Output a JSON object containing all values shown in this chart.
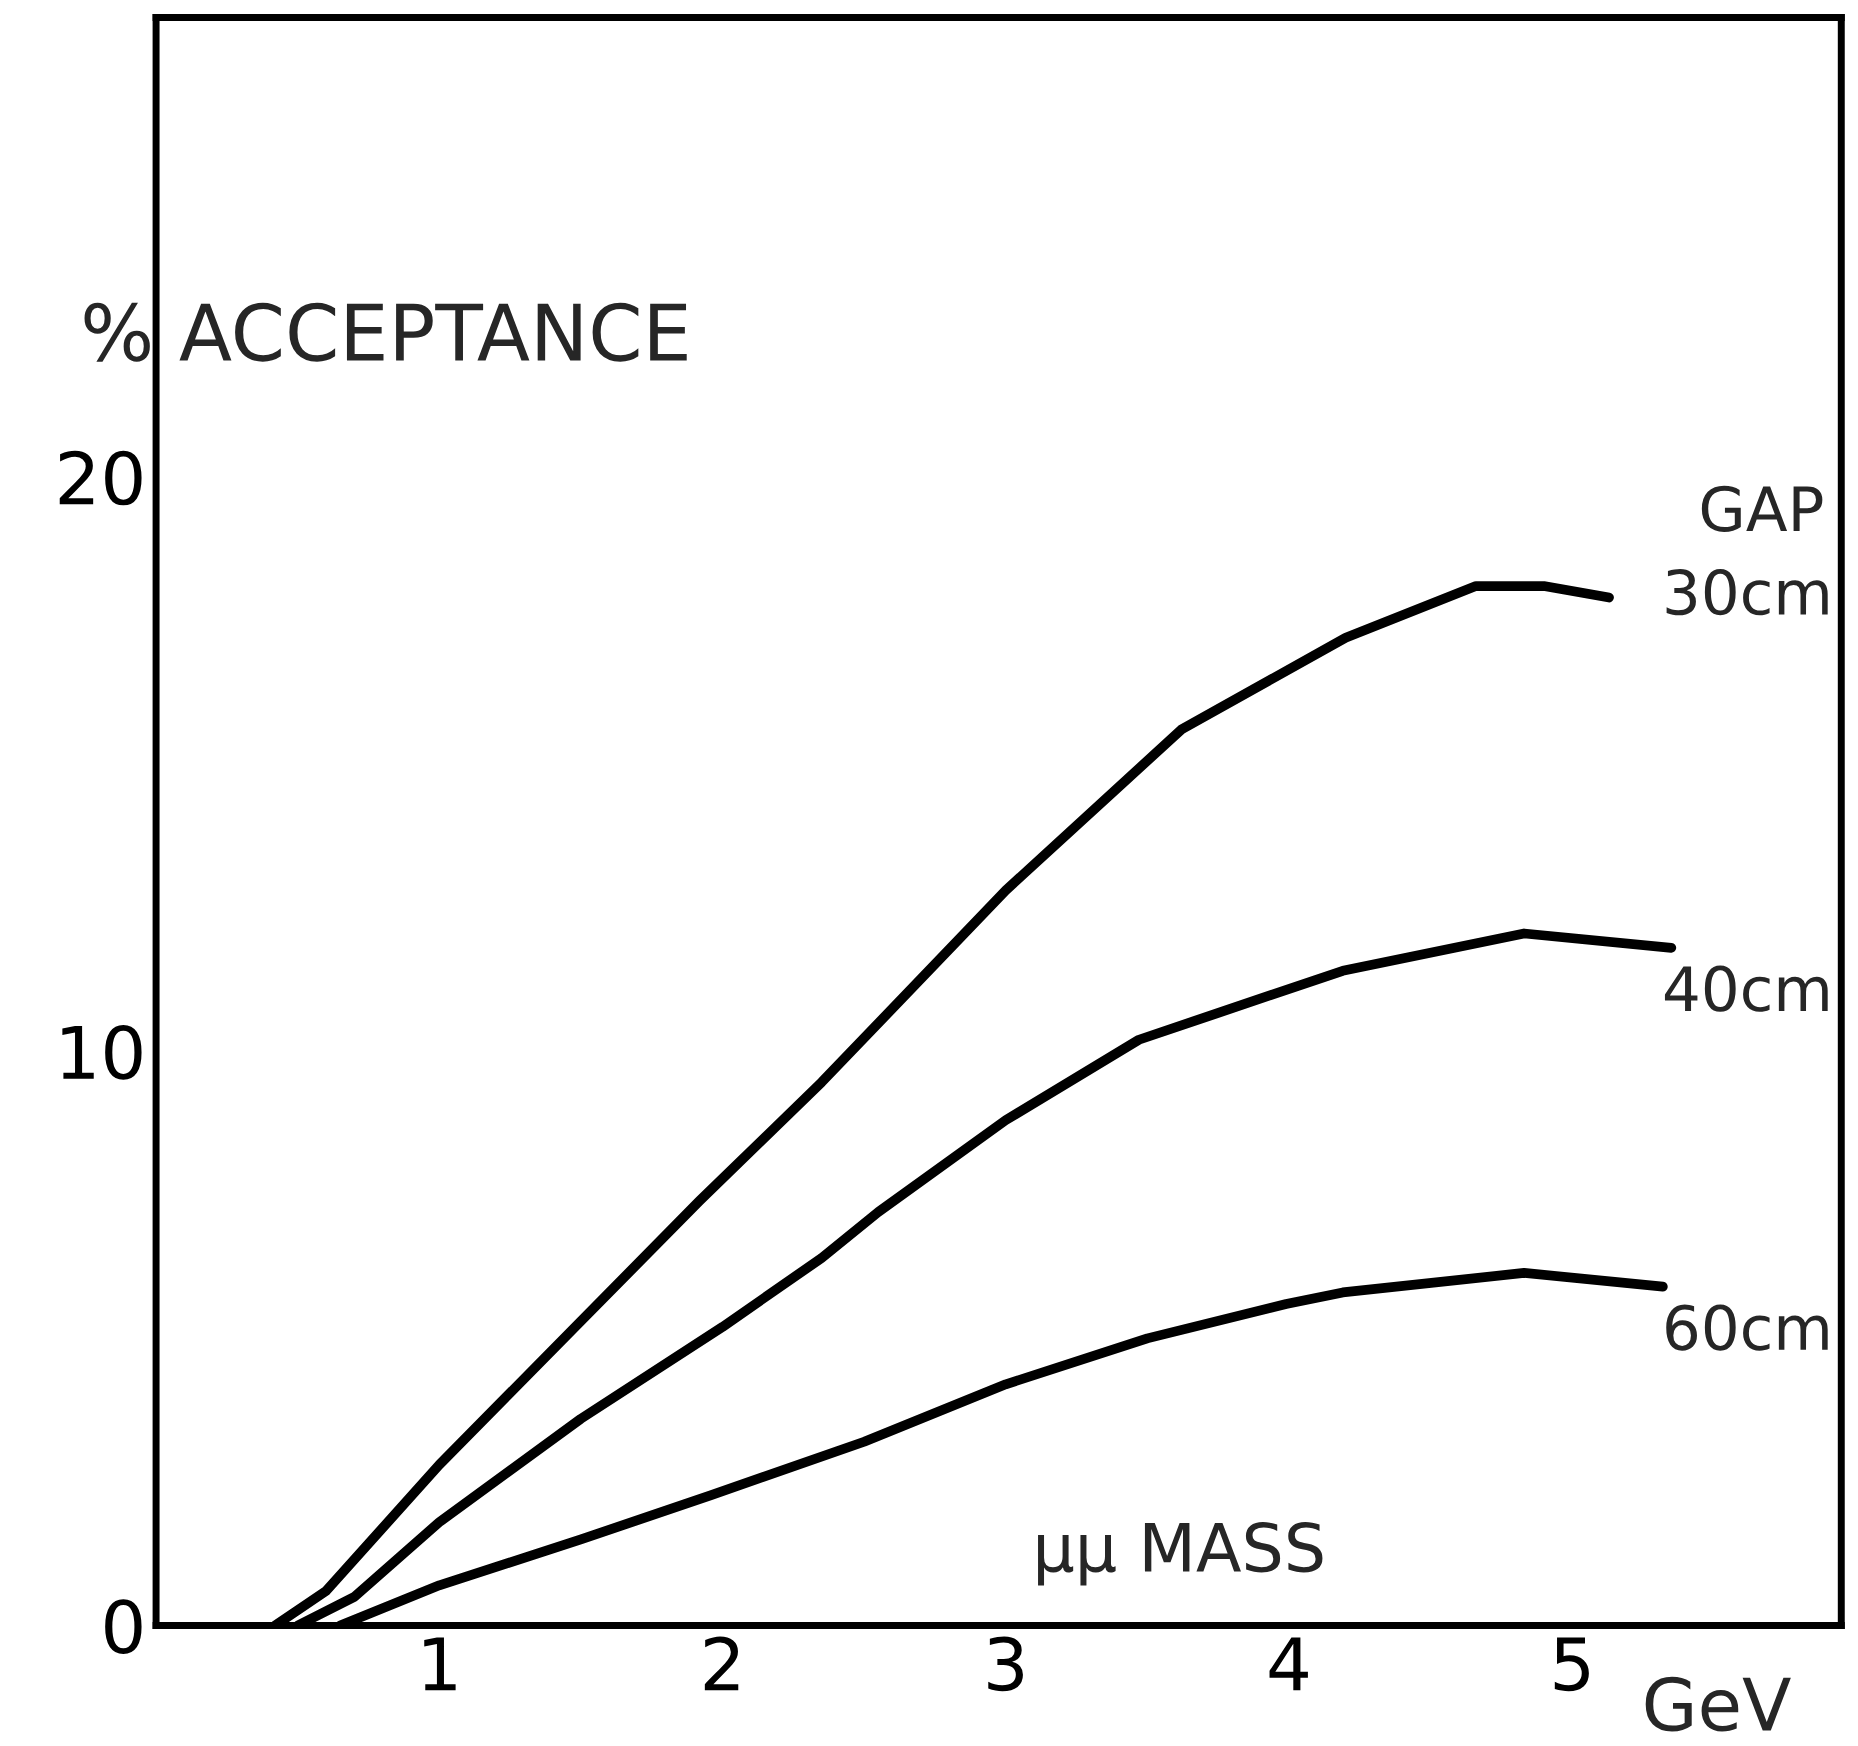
{
  "chart_data": {
    "type": "line",
    "ylabel": "% ACCEPTANCE",
    "xlabel": "μμ MASS",
    "annotations": [
      "GeV"
    ],
    "legend_title": "GAP",
    "xlim": [
      0,
      5.95
    ],
    "ylim": [
      0,
      28
    ],
    "xticks": [
      1,
      2,
      3,
      4,
      5
    ],
    "yticks": [
      0,
      10,
      20
    ],
    "grid": false,
    "marker": "none",
    "line_style": "solid",
    "series": [
      {
        "name": "30cm",
        "color": "#000000",
        "x": [
          0.42,
          0.6,
          1.0,
          1.5,
          1.92,
          2.35,
          3.0,
          3.62,
          4.2,
          4.66,
          4.9,
          5.13
        ],
        "values": [
          0,
          0.6,
          2.8,
          5.3,
          7.4,
          9.46,
          12.8,
          15.6,
          17.2,
          18.1,
          18.1,
          17.9
        ]
      },
      {
        "name": "40cm",
        "color": "#000000",
        "x": [
          0.5,
          0.7,
          1.0,
          1.5,
          2.0,
          2.35,
          2.55,
          3.0,
          3.47,
          4.19,
          4.83,
          5.35
        ],
        "values": [
          0,
          0.5,
          1.8,
          3.6,
          5.2,
          6.4,
          7.2,
          8.8,
          10.2,
          11.4,
          12.05,
          11.8
        ]
      },
      {
        "name": "60cm",
        "color": "#000000",
        "x": [
          0.65,
          1.0,
          1.5,
          1.96,
          2.5,
          3.0,
          3.5,
          3.99,
          4.19,
          4.83,
          5.32
        ],
        "values": [
          0,
          0.7,
          1.5,
          2.27,
          3.2,
          4.2,
          5.0,
          5.6,
          5.8,
          6.14,
          5.9
        ]
      }
    ]
  }
}
